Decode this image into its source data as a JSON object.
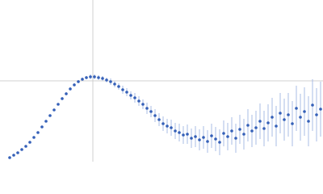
{
  "chart_data": {
    "type": "scatter",
    "color": "#3560b8",
    "error_color": "#a9bde6",
    "xlim": [
      0,
      400
    ],
    "ylim": [
      0,
      200
    ],
    "xticks": [
      115
    ],
    "yticks": [
      100
    ],
    "grid": true,
    "x": [
      12,
      17,
      22,
      27,
      32,
      37,
      42,
      47,
      52,
      57,
      62,
      67,
      72,
      77,
      82,
      87,
      92,
      97,
      102,
      107,
      112,
      117,
      122,
      127,
      132,
      137,
      142,
      147,
      152,
      157,
      162,
      167,
      172,
      177,
      182,
      187,
      192,
      197,
      202,
      207,
      212,
      217,
      222,
      227,
      232,
      237,
      242,
      247,
      252,
      257,
      262,
      267,
      272,
      277,
      282,
      287,
      292,
      297,
      302,
      307,
      312,
      317,
      322,
      327,
      332,
      337,
      342,
      347,
      352,
      357,
      362,
      367,
      372,
      377,
      382,
      387,
      392,
      397
    ],
    "values": [
      5,
      8,
      11,
      15,
      19,
      24,
      30,
      36,
      43,
      50,
      57,
      64,
      71,
      78,
      84,
      90,
      95,
      99,
      102,
      104,
      105,
      105,
      104,
      103,
      101,
      99,
      96,
      93,
      89,
      86,
      82,
      79,
      75,
      71,
      66,
      62,
      57,
      52,
      47,
      44,
      42,
      38,
      36,
      33,
      34,
      29,
      31,
      27,
      30,
      25,
      32,
      28,
      24,
      35,
      31,
      38,
      29,
      40,
      34,
      45,
      38,
      42,
      50,
      41,
      48,
      55,
      44,
      60,
      52,
      58,
      47,
      66,
      55,
      62,
      50,
      70,
      58,
      65
    ],
    "errors": [
      1,
      1,
      1,
      1,
      1,
      1,
      1,
      1,
      1,
      1,
      1,
      1,
      1,
      2,
      2,
      2,
      2,
      2,
      2,
      2,
      3,
      3,
      3,
      3,
      3,
      4,
      4,
      4,
      5,
      5,
      5,
      6,
      6,
      6,
      7,
      7,
      8,
      8,
      9,
      9,
      10,
      10,
      11,
      11,
      12,
      12,
      13,
      13,
      14,
      14,
      15,
      15,
      16,
      16,
      17,
      17,
      18,
      18,
      19,
      20,
      20,
      21,
      22,
      22,
      23,
      24,
      25,
      25,
      26,
      27,
      28,
      28,
      29,
      30,
      31,
      32,
      33,
      34
    ]
  }
}
